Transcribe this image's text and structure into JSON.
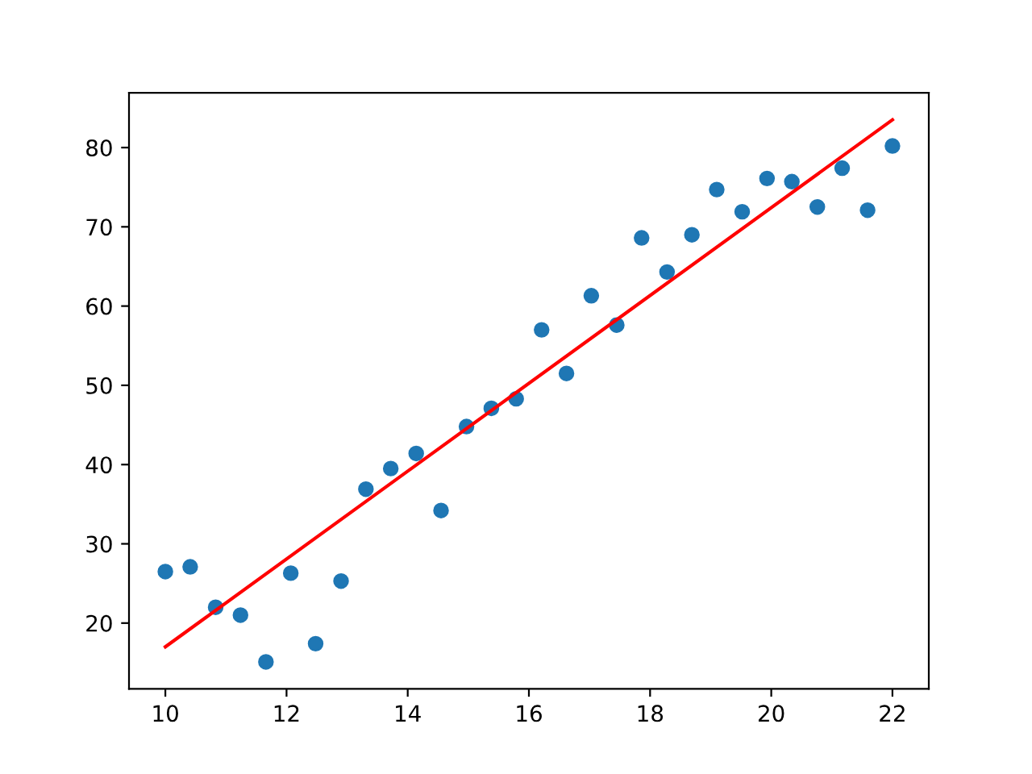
{
  "chart_data": {
    "type": "scatter",
    "xlim": [
      9.4,
      22.6
    ],
    "ylim": [
      11.7,
      86.9
    ],
    "xticks": [
      10,
      12,
      14,
      16,
      18,
      20,
      22
    ],
    "yticks": [
      20,
      30,
      40,
      50,
      60,
      70,
      80
    ],
    "grid": false,
    "legend": false,
    "marker": "circle",
    "series": [
      {
        "color": "#1f77b4",
        "x": [
          10.0,
          10.41,
          10.83,
          11.24,
          11.66,
          12.07,
          12.48,
          12.9,
          13.31,
          13.72,
          14.14,
          14.55,
          14.97,
          15.38,
          15.79,
          16.21,
          16.62,
          17.03,
          17.45,
          17.86,
          18.28,
          18.69,
          19.1,
          19.52,
          19.93,
          20.34,
          20.76,
          21.17,
          21.59,
          22.0
        ],
        "values": [
          26.5,
          27.1,
          22.0,
          21.0,
          15.1,
          26.3,
          17.4,
          25.3,
          36.9,
          39.5,
          41.4,
          34.2,
          44.8,
          47.1,
          48.3,
          57.0,
          51.5,
          61.3,
          57.6,
          68.6,
          64.3,
          69.0,
          74.7,
          71.9,
          76.1,
          75.7,
          72.5,
          77.4,
          72.1,
          80.2
        ]
      },
      {
        "type": "line",
        "color": "#ff0000",
        "x": [
          10,
          22
        ],
        "values": [
          17.0,
          83.5
        ],
        "line_style": "solid",
        "marker": "none"
      }
    ]
  }
}
